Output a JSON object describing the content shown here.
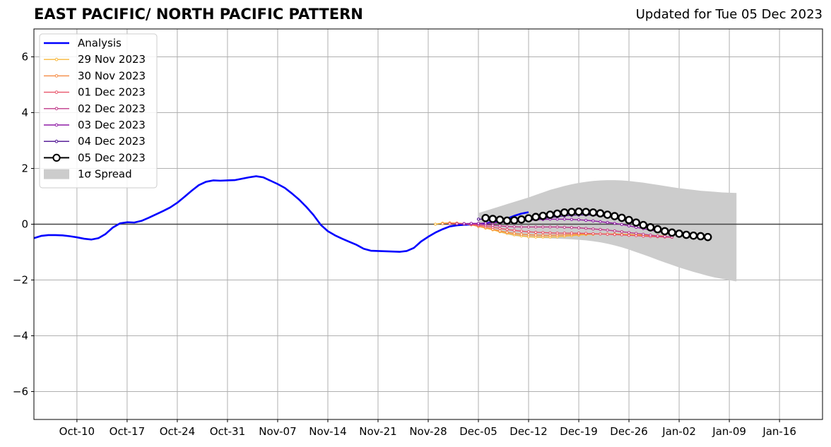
{
  "chart_data": {
    "type": "line",
    "title": "EAST PACIFIC/ NORTH PACIFIC PATTERN",
    "subtitle": "Updated for Tue 05 Dec 2023",
    "xlabel": "",
    "ylabel": "",
    "ylim": [
      -7,
      7
    ],
    "yticks": [
      -6,
      -4,
      -2,
      0,
      2,
      4,
      6
    ],
    "ytick_labels": [
      "−6",
      "−4",
      "−2",
      "0",
      "2",
      "4",
      "6"
    ],
    "x_start": "2023-10-04",
    "xlim": [
      "2023-10-04",
      "2024-01-22"
    ],
    "xticks": [
      "2023-10-10",
      "2023-10-17",
      "2023-10-24",
      "2023-10-31",
      "2023-11-07",
      "2023-11-14",
      "2023-11-21",
      "2023-11-28",
      "2023-12-05",
      "2023-12-12",
      "2023-12-19",
      "2023-12-26",
      "2024-01-02",
      "2024-01-09",
      "2024-01-16"
    ],
    "xtick_labels": [
      "Oct-10",
      "Oct-17",
      "Oct-24",
      "Oct-31",
      "Nov-07",
      "Nov-14",
      "Nov-21",
      "Nov-28",
      "Dec-05",
      "Dec-12",
      "Dec-19",
      "Dec-26",
      "Jan-02",
      "Jan-09",
      "Jan-16"
    ],
    "grid": true,
    "legend_position": "top-left",
    "spread_label": "1σ Spread",
    "spread_color": "#cccccc",
    "spread": {
      "start": "2023-12-05",
      "upper": [
        0.4,
        0.48,
        0.56,
        0.64,
        0.72,
        0.8,
        0.88,
        0.96,
        1.05,
        1.14,
        1.23,
        1.3,
        1.37,
        1.43,
        1.48,
        1.52,
        1.55,
        1.57,
        1.58,
        1.58,
        1.57,
        1.55,
        1.52,
        1.49,
        1.45,
        1.41,
        1.37,
        1.33,
        1.29,
        1.26,
        1.23,
        1.2,
        1.18,
        1.16,
        1.14,
        1.13,
        1.12
      ],
      "lower": [
        0.0,
        -0.1,
        -0.2,
        -0.3,
        -0.36,
        -0.42,
        -0.45,
        -0.47,
        -0.49,
        -0.5,
        -0.51,
        -0.52,
        -0.53,
        -0.54,
        -0.56,
        -0.58,
        -0.61,
        -0.65,
        -0.7,
        -0.76,
        -0.83,
        -0.91,
        -1.0,
        -1.09,
        -1.18,
        -1.28,
        -1.37,
        -1.46,
        -1.55,
        -1.63,
        -1.71,
        -1.78,
        -1.85,
        -1.91,
        -1.96,
        -2.01,
        -2.05
      ]
    },
    "series": [
      {
        "name": "Analysis",
        "color": "#0000ff",
        "start": "2023-10-04",
        "values": [
          -0.5,
          -0.42,
          -0.39,
          -0.39,
          -0.4,
          -0.43,
          -0.47,
          -0.52,
          -0.55,
          -0.5,
          -0.35,
          -0.12,
          0.03,
          0.07,
          0.06,
          0.12,
          0.23,
          0.35,
          0.47,
          0.6,
          0.77,
          0.98,
          1.2,
          1.4,
          1.52,
          1.57,
          1.56,
          1.57,
          1.58,
          1.63,
          1.68,
          1.72,
          1.68,
          1.56,
          1.44,
          1.3,
          1.1,
          0.88,
          0.62,
          0.33,
          -0.02,
          -0.25,
          -0.4,
          -0.52,
          -0.63,
          -0.74,
          -0.88,
          -0.95,
          -0.96,
          -0.97,
          -0.98,
          -0.99,
          -0.96,
          -0.85,
          -0.62,
          -0.45,
          -0.3,
          -0.18,
          -0.08,
          -0.04,
          -0.02,
          -0.01,
          0.0,
          0.03,
          0.08,
          0.13,
          0.2,
          0.3,
          0.38,
          0.43
        ]
      },
      {
        "name": "29 Nov 2023",
        "color": "#f7b73a",
        "start": "2023-11-29",
        "values": [
          0.0,
          0.04,
          0.05,
          0.04,
          0.02,
          -0.02,
          -0.08,
          -0.14,
          -0.2,
          -0.27,
          -0.33,
          -0.38,
          -0.42,
          -0.45,
          -0.46,
          -0.46,
          -0.46,
          -0.45,
          -0.43,
          -0.41,
          -0.39,
          -0.37,
          -0.36,
          -0.35,
          -0.35,
          -0.35,
          -0.36,
          -0.37,
          -0.38,
          -0.39,
          -0.4,
          -0.41,
          -0.42
        ]
      },
      {
        "name": "30 Nov 2023",
        "color": "#f58b43",
        "start": "2023-11-30",
        "values": [
          0.02,
          0.04,
          0.04,
          0.02,
          -0.02,
          -0.07,
          -0.12,
          -0.18,
          -0.24,
          -0.29,
          -0.33,
          -0.36,
          -0.38,
          -0.39,
          -0.4,
          -0.4,
          -0.39,
          -0.38,
          -0.37,
          -0.36,
          -0.35,
          -0.35,
          -0.35,
          -0.36,
          -0.37,
          -0.38,
          -0.39,
          -0.4,
          -0.42,
          -0.43,
          -0.44,
          -0.45,
          -0.46
        ]
      },
      {
        "name": "01 Dec 2023",
        "color": "#e8546a",
        "start": "2023-12-01",
        "values": [
          0.02,
          0.02,
          0.01,
          -0.01,
          -0.04,
          -0.07,
          -0.11,
          -0.15,
          -0.19,
          -0.22,
          -0.25,
          -0.27,
          -0.29,
          -0.3,
          -0.31,
          -0.32,
          -0.32,
          -0.32,
          -0.32,
          -0.33,
          -0.34,
          -0.35,
          -0.36,
          -0.37,
          -0.38,
          -0.4,
          -0.41,
          -0.43,
          -0.44,
          -0.45,
          -0.46,
          -0.47
        ]
      },
      {
        "name": "02 Dec 2023",
        "color": "#c03a8a",
        "start": "2023-12-02",
        "values": [
          0.02,
          0.02,
          0.01,
          0.0,
          -0.02,
          -0.04,
          -0.06,
          -0.08,
          -0.09,
          -0.1,
          -0.1,
          -0.1,
          -0.1,
          -0.1,
          -0.1,
          -0.11,
          -0.12,
          -0.13,
          -0.15,
          -0.17,
          -0.19,
          -0.21,
          -0.24,
          -0.27,
          -0.3,
          -0.33,
          -0.36,
          -0.39,
          -0.42,
          -0.44,
          -0.46
        ]
      },
      {
        "name": "03 Dec 2023",
        "color": "#8f1ba6",
        "start": "2023-12-03",
        "values": [
          0.02,
          0.03,
          0.03,
          0.04,
          0.05,
          0.06,
          0.08,
          0.1,
          0.12,
          0.14,
          0.16,
          0.17,
          0.18,
          0.18,
          0.18,
          0.17,
          0.16,
          0.14,
          0.12,
          0.09,
          0.06,
          0.03,
          -0.01,
          -0.06,
          -0.11,
          -0.16,
          -0.21,
          -0.26,
          -0.31,
          -0.35
        ]
      },
      {
        "name": "04 Dec 2023",
        "color": "#4a0c8f",
        "start": "2023-12-05",
        "values": [
          0.18,
          0.18,
          0.16,
          0.13,
          0.11,
          0.11,
          0.12,
          0.14,
          0.17,
          0.2,
          0.24,
          0.27,
          0.3,
          0.32,
          0.33,
          0.33,
          0.33,
          0.31,
          0.28,
          0.23,
          0.17,
          0.11,
          0.04,
          -0.03,
          -0.1,
          -0.16,
          -0.22,
          -0.27,
          -0.32,
          -0.37
        ]
      },
      {
        "name": "05 Dec 2023",
        "color": "#000000",
        "start": "2023-12-06",
        "markers": true,
        "values": [
          0.22,
          0.19,
          0.16,
          0.13,
          0.14,
          0.17,
          0.21,
          0.26,
          0.3,
          0.34,
          0.38,
          0.42,
          0.44,
          0.45,
          0.44,
          0.42,
          0.39,
          0.34,
          0.29,
          0.23,
          0.15,
          0.06,
          -0.03,
          -0.11,
          -0.18,
          -0.25,
          -0.3,
          -0.34,
          -0.38,
          -0.41,
          -0.43,
          -0.46
        ]
      }
    ]
  }
}
